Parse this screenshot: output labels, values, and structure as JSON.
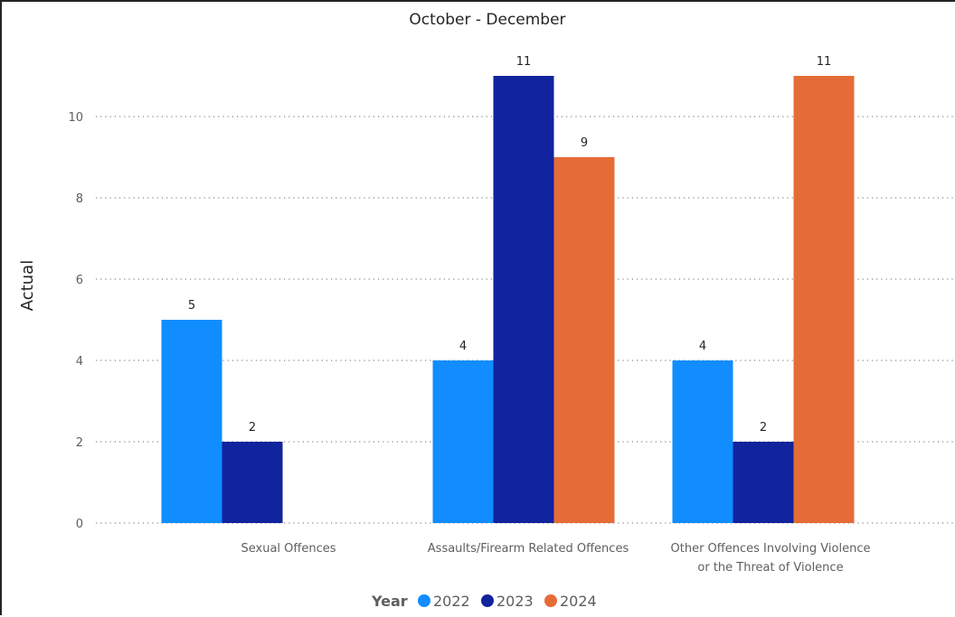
{
  "chart_data": {
    "type": "bar",
    "title": "October - December",
    "ylabel": "Actual",
    "xlabel": "",
    "ylim": [
      0,
      11
    ],
    "yticks": [
      0,
      2,
      4,
      6,
      8,
      10
    ],
    "grid": true,
    "legend_position": "bottom",
    "legend_title": "Year",
    "categories": [
      [
        "Sexual Offences"
      ],
      [
        "Assaults/Firearm Related Offences"
      ],
      [
        "Other Offences Involving Violence",
        "or the Threat of Violence"
      ]
    ],
    "series": [
      {
        "name": "2022",
        "color": "#118DFF",
        "values": [
          5,
          4,
          4
        ]
      },
      {
        "name": "2023",
        "color": "#12239E",
        "values": [
          2,
          11,
          2
        ]
      },
      {
        "name": "2024",
        "color": "#E66C37",
        "values": [
          null,
          9,
          11
        ]
      }
    ]
  }
}
